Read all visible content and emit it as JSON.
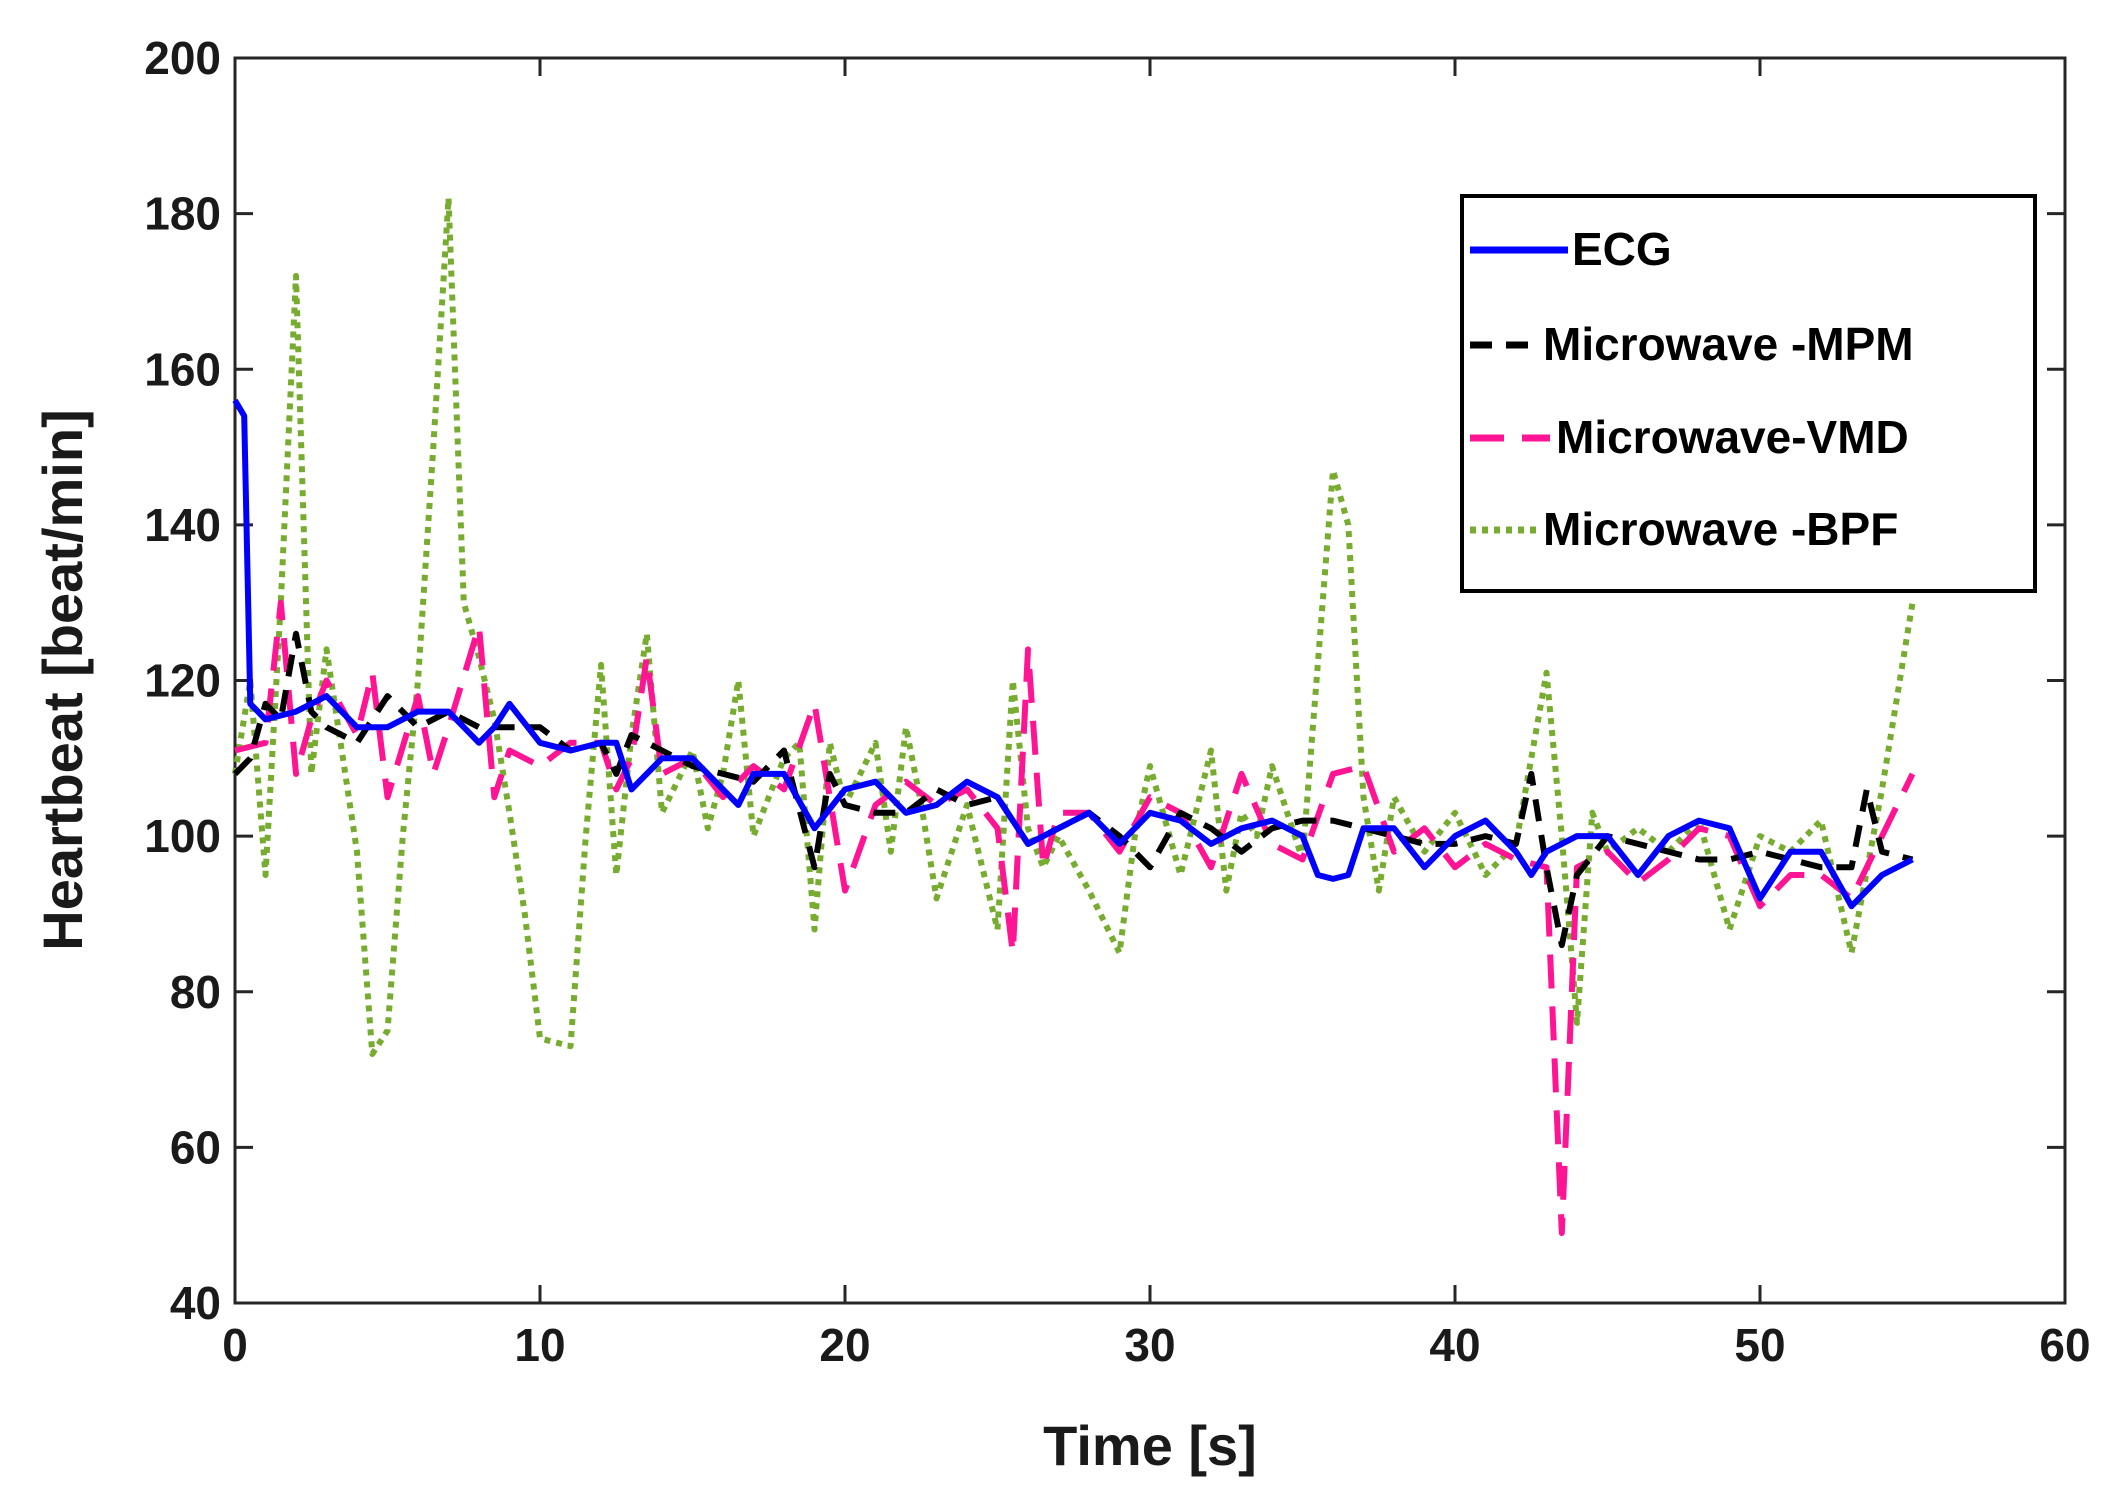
{
  "chart_data": {
    "type": "line",
    "title": "",
    "xlabel": "Time [s]",
    "ylabel": "Heartbeat [beat/min]",
    "xlim": [
      0,
      60
    ],
    "ylim": [
      40,
      200
    ],
    "xticks": [
      0,
      10,
      20,
      30,
      40,
      50,
      60
    ],
    "yticks": [
      40,
      60,
      80,
      100,
      120,
      140,
      160,
      180,
      200
    ],
    "grid": false,
    "legend_position": "top-right",
    "series": [
      {
        "key": "ecg",
        "name": "ECG",
        "color": "#0000ff",
        "style": "solid",
        "x": [
          0,
          0.3,
          0.5,
          1,
          2,
          3,
          4,
          5,
          6,
          7,
          7.5,
          8,
          8.5,
          9,
          10,
          11,
          12,
          12.5,
          13,
          14,
          15,
          16,
          16.5,
          17,
          18,
          19,
          20,
          21,
          22,
          23,
          24,
          25,
          26,
          27,
          28,
          29,
          30,
          31,
          32,
          33,
          34,
          35,
          35.5,
          36,
          36.5,
          37,
          38,
          39,
          40,
          41,
          42,
          42.5,
          43,
          44,
          45,
          46,
          47,
          48,
          49,
          50,
          51,
          52,
          53,
          54,
          55
        ],
        "y": [
          156,
          154,
          117,
          115,
          116,
          118,
          114,
          114,
          116,
          116,
          114,
          112,
          114,
          117,
          112,
          111,
          112,
          112,
          106,
          110,
          110,
          106,
          104,
          108,
          108,
          101,
          106,
          107,
          103,
          104,
          107,
          105,
          99,
          101,
          103,
          99,
          103,
          102,
          99,
          101,
          102,
          100,
          95,
          94.5,
          95,
          101,
          101,
          96,
          100,
          102,
          98,
          95,
          98,
          100,
          100,
          95,
          100,
          102,
          101,
          92,
          98,
          98,
          91,
          95,
          97
        ]
      },
      {
        "key": "mpm",
        "name": "Microwave -MPM",
        "color": "#000000",
        "style": "dashed",
        "x": [
          0,
          0.5,
          1,
          1.5,
          2,
          2.5,
          3,
          4,
          5,
          6,
          7,
          8,
          9,
          10,
          11,
          12,
          12.5,
          13,
          14,
          15,
          16,
          17,
          18,
          19,
          19.5,
          20,
          21,
          22,
          23,
          24,
          25,
          26,
          27,
          28,
          29,
          30,
          31,
          32,
          33,
          34,
          35,
          36,
          37,
          38,
          39,
          40,
          41,
          42,
          42.5,
          43,
          43.5,
          44,
          45,
          46,
          47,
          48,
          49,
          50,
          51,
          52,
          53,
          53.5,
          54,
          55
        ],
        "y": [
          108,
          110,
          117,
          115,
          126,
          116,
          114,
          112,
          118,
          114,
          116,
          114,
          114,
          114,
          111,
          112,
          108,
          113,
          111,
          109,
          108,
          107,
          111,
          96,
          108,
          104,
          103,
          103,
          106,
          104,
          105,
          99,
          101,
          103,
          100,
          96,
          103,
          101,
          98,
          101,
          102,
          102,
          101,
          100,
          99,
          99,
          100,
          99,
          108,
          96,
          86,
          95,
          100,
          99,
          98,
          97,
          97,
          98,
          97,
          96,
          96,
          106,
          98,
          97
        ]
      },
      {
        "key": "vmd",
        "name": "Microwave-VMD",
        "color": "#ff1493",
        "style": "longdash",
        "x": [
          0,
          1,
          1.5,
          2,
          2.5,
          3,
          4,
          4.5,
          5,
          6,
          6.5,
          7,
          8,
          8.5,
          9,
          10,
          11,
          12,
          12.5,
          13,
          13.5,
          14,
          15,
          16,
          17,
          18,
          19,
          20,
          21,
          22,
          23,
          24,
          25,
          25.5,
          26,
          26.5,
          27,
          28,
          29,
          30,
          31,
          32,
          33,
          34,
          35,
          36,
          37,
          38,
          39,
          40,
          41,
          42,
          43,
          43.5,
          44,
          45,
          46,
          47,
          48,
          49,
          50,
          51,
          52,
          53,
          54,
          55
        ],
        "y": [
          111,
          112,
          130,
          108,
          115,
          120,
          113,
          121,
          105,
          118,
          108,
          114,
          127,
          105,
          111,
          109,
          112,
          112,
          106,
          110,
          123,
          108,
          110,
          105,
          109,
          106,
          117,
          93,
          104,
          107,
          104,
          106,
          101,
          85,
          124,
          96,
          103,
          103,
          98,
          105,
          103,
          96,
          108,
          99,
          97,
          108,
          109,
          98,
          101,
          96,
          99,
          97,
          96,
          49,
          96,
          98,
          94,
          97,
          101,
          100,
          91,
          95,
          95,
          92,
          100,
          108
        ]
      },
      {
        "key": "bpf",
        "name": "Microwave -BPF",
        "color": "#77ac30",
        "style": "dotted",
        "x": [
          0,
          0.5,
          1,
          1.5,
          2,
          2.5,
          3,
          4,
          4.5,
          5,
          5.5,
          6,
          6.5,
          7,
          7.5,
          8,
          8.5,
          9,
          9.5,
          10,
          11,
          11.5,
          12,
          12.5,
          13,
          13.5,
          14,
          15,
          15.5,
          16,
          16.5,
          17,
          18,
          18.5,
          19,
          19.5,
          20,
          21,
          21.5,
          22,
          22.5,
          23,
          24,
          25,
          25.5,
          26,
          26.5,
          27,
          28,
          29,
          29.5,
          30,
          31,
          32,
          32.5,
          33,
          33.5,
          34,
          35,
          36,
          36.5,
          37,
          37.5,
          38,
          39,
          40,
          41,
          42,
          43,
          43.5,
          44,
          44.5,
          45,
          46,
          47,
          48,
          49,
          50,
          51,
          52,
          53,
          54,
          55
        ],
        "y": [
          108,
          120,
          95,
          130,
          172,
          108,
          124,
          98,
          72,
          75,
          100,
          120,
          150,
          182,
          130,
          123,
          115,
          103,
          90,
          74,
          73,
          100,
          122,
          95,
          113,
          126,
          103,
          111,
          101,
          108,
          120,
          100,
          110,
          112,
          88,
          112,
          104,
          112,
          98,
          114,
          104,
          92,
          104,
          88,
          120,
          101,
          96,
          100,
          93,
          85,
          100,
          109,
          95,
          111,
          93,
          103,
          100,
          109,
          97,
          147,
          140,
          105,
          93,
          105,
          98,
          103,
          95,
          99,
          121,
          100,
          76,
          103,
          98,
          101,
          98,
          102,
          88,
          100,
          98,
          102,
          85,
          106,
          130
        ]
      }
    ]
  }
}
